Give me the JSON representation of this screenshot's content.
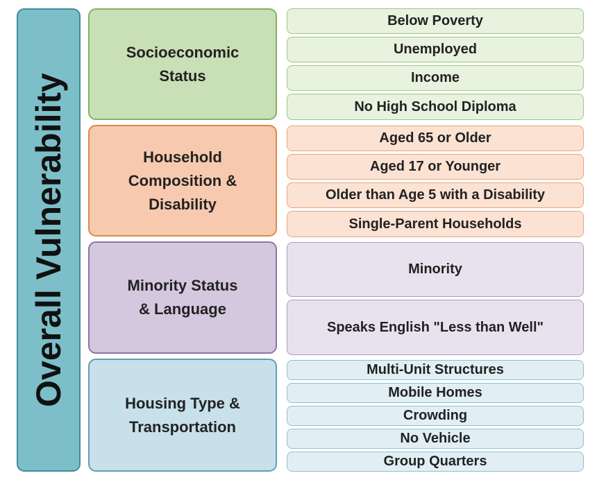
{
  "overall": {
    "title": "Overall Vulnerability"
  },
  "themes": [
    {
      "title_lines": [
        "Socioeconomic",
        "Status"
      ],
      "variables": [
        "Below Poverty",
        "Unemployed",
        "Income",
        "No High School Diploma"
      ],
      "colors": {
        "theme_fill": "#c9dfb5",
        "theme_border": "#7fb361",
        "variable_fill": "#e7f2df"
      }
    },
    {
      "title_lines": [
        "Household",
        "Composition &",
        "Disability"
      ],
      "variables": [
        "Aged 65 or Older",
        "Aged 17 or Younger",
        "Older than Age 5 with a Disability",
        "Single-Parent Households"
      ],
      "colors": {
        "theme_fill": "#f7c9ae",
        "theme_border": "#dd8850",
        "variable_fill": "#fbe2d3"
      }
    },
    {
      "title_lines": [
        "Minority Status",
        "& Language"
      ],
      "variables": [
        "Minority",
        "Speaks English \"Less than Well\""
      ],
      "colors": {
        "theme_fill": "#d3c8de",
        "theme_border": "#8f74a6",
        "variable_fill": "#e8e2ef"
      }
    },
    {
      "title_lines": [
        "Housing Type &",
        "Transportation"
      ],
      "variables": [
        "Multi-Unit Structures",
        "Mobile Homes",
        "Crowding",
        "No Vehicle",
        "Group Quarters"
      ],
      "colors": {
        "theme_fill": "#c7e0ea",
        "theme_border": "#5f9fb5",
        "variable_fill": "#e1eff5"
      }
    }
  ]
}
